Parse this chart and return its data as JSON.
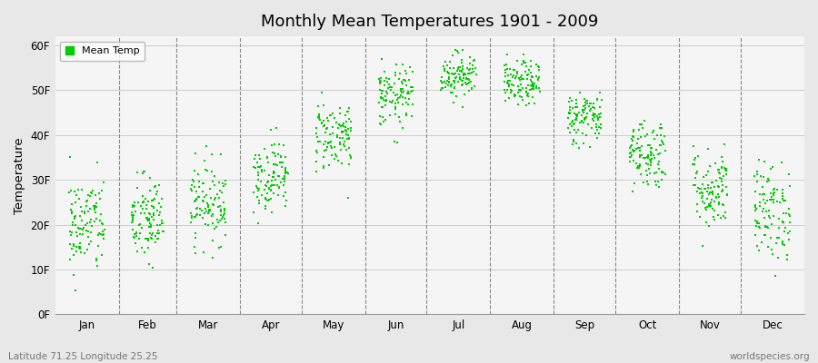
{
  "title": "Monthly Mean Temperatures 1901 - 2009",
  "ylabel": "Temperature",
  "subtitle_left": "Latitude 71.25 Longitude 25.25",
  "subtitle_right": "worldspecies.org",
  "yticks": [
    0,
    10,
    20,
    30,
    40,
    50,
    60
  ],
  "ytick_labels": [
    "0F",
    "10F",
    "20F",
    "30F",
    "40F",
    "50F",
    "60F"
  ],
  "ylim": [
    0,
    62
  ],
  "months": [
    "Jan",
    "Feb",
    "Mar",
    "Apr",
    "May",
    "Jun",
    "Jul",
    "Aug",
    "Sep",
    "Oct",
    "Nov",
    "Dec"
  ],
  "dot_color": "#00cc00",
  "bg_color": "#e8e8e8",
  "plot_bg": "#f5f5f5",
  "grid_color": "#cccccc",
  "years": 109,
  "start_year": 1901,
  "end_year": 2009,
  "monthly_means": [
    20.0,
    21.0,
    25.0,
    31.0,
    40.0,
    48.5,
    53.5,
    51.5,
    44.0,
    36.0,
    28.0,
    23.0
  ],
  "monthly_stds": [
    5.5,
    5.0,
    4.5,
    4.0,
    4.0,
    3.5,
    2.5,
    2.5,
    3.0,
    4.0,
    4.5,
    5.5
  ],
  "days_in_month": [
    31,
    28,
    31,
    30,
    31,
    30,
    31,
    31,
    30,
    31,
    30,
    31
  ],
  "seed": 42
}
